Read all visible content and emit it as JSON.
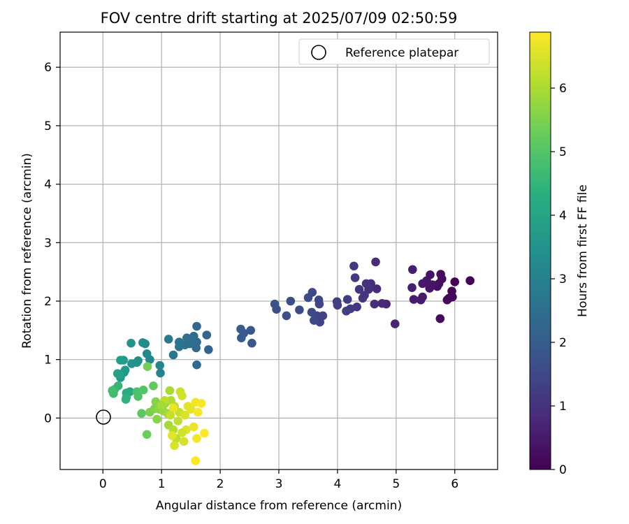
{
  "chart_data": {
    "type": "scatter",
    "title": "FOV centre drift starting at 2025/07/09 02:50:59",
    "xlabel": "Angular distance from reference (arcmin)",
    "ylabel": "Rotation from reference (arcmin)",
    "xlim": [
      -0.73,
      6.73
    ],
    "ylim": [
      -0.88,
      6.6
    ],
    "xticks": [
      0,
      1,
      2,
      3,
      4,
      5,
      6
    ],
    "yticks": [
      0,
      1,
      2,
      3,
      4,
      5,
      6
    ],
    "grid": true,
    "legend": {
      "position": "top-right",
      "entries": [
        "Reference platepar"
      ]
    },
    "reference_point": {
      "x": 0,
      "y": 0,
      "marker": "open-circle",
      "color": "#000000"
    },
    "colorbar": {
      "label": "Hours from first FF file",
      "range": [
        0,
        6.88
      ],
      "ticks": [
        0,
        1,
        2,
        3,
        4,
        5,
        6
      ],
      "colormap": "viridis"
    },
    "series": [
      {
        "points": [
          {
            "x": 6.26,
            "y": 2.35,
            "h": 0.0
          },
          {
            "x": 6.0,
            "y": 2.33,
            "h": 0.03
          },
          {
            "x": 5.95,
            "y": 2.17,
            "h": 0.06
          },
          {
            "x": 5.9,
            "y": 2.05,
            "h": 0.09
          },
          {
            "x": 5.96,
            "y": 2.07,
            "h": 0.12
          },
          {
            "x": 5.87,
            "y": 2.02,
            "h": 0.15
          },
          {
            "x": 5.75,
            "y": 1.7,
            "h": 0.18
          },
          {
            "x": 5.76,
            "y": 2.46,
            "h": 0.21
          },
          {
            "x": 5.78,
            "y": 2.38,
            "h": 0.24
          },
          {
            "x": 5.73,
            "y": 2.3,
            "h": 0.27
          },
          {
            "x": 5.7,
            "y": 2.25,
            "h": 0.3
          },
          {
            "x": 5.58,
            "y": 2.45,
            "h": 0.33
          },
          {
            "x": 5.62,
            "y": 2.28,
            "h": 0.36
          },
          {
            "x": 5.57,
            "y": 2.22,
            "h": 0.39
          },
          {
            "x": 5.52,
            "y": 2.35,
            "h": 0.42
          },
          {
            "x": 5.45,
            "y": 2.3,
            "h": 0.45
          },
          {
            "x": 5.42,
            "y": 2.02,
            "h": 0.48
          },
          {
            "x": 5.45,
            "y": 2.07,
            "h": 0.51
          },
          {
            "x": 5.3,
            "y": 2.03,
            "h": 0.54
          },
          {
            "x": 5.28,
            "y": 2.54,
            "h": 0.57
          },
          {
            "x": 5.27,
            "y": 2.23,
            "h": 0.6
          },
          {
            "x": 4.98,
            "y": 1.61,
            "h": 0.7
          },
          {
            "x": 4.83,
            "y": 1.95,
            "h": 0.75
          },
          {
            "x": 4.76,
            "y": 1.96,
            "h": 0.8
          },
          {
            "x": 4.65,
            "y": 2.67,
            "h": 0.85
          },
          {
            "x": 4.67,
            "y": 2.21,
            "h": 0.88
          },
          {
            "x": 4.63,
            "y": 1.95,
            "h": 0.9
          },
          {
            "x": 4.57,
            "y": 2.3,
            "h": 0.95
          },
          {
            "x": 4.53,
            "y": 2.2,
            "h": 1.0
          },
          {
            "x": 4.49,
            "y": 2.3,
            "h": 1.02
          },
          {
            "x": 4.46,
            "y": 2.1,
            "h": 1.05
          },
          {
            "x": 4.43,
            "y": 2.05,
            "h": 1.08
          },
          {
            "x": 4.37,
            "y": 2.2,
            "h": 1.1
          },
          {
            "x": 4.33,
            "y": 1.9,
            "h": 1.12
          },
          {
            "x": 4.28,
            "y": 2.6,
            "h": 1.15
          },
          {
            "x": 4.3,
            "y": 2.4,
            "h": 1.18
          },
          {
            "x": 4.22,
            "y": 1.87,
            "h": 1.2
          },
          {
            "x": 4.17,
            "y": 2.03,
            "h": 1.22
          },
          {
            "x": 4.15,
            "y": 1.83,
            "h": 1.25
          },
          {
            "x": 3.99,
            "y": 1.99,
            "h": 1.28
          },
          {
            "x": 4.0,
            "y": 1.93,
            "h": 1.3
          },
          {
            "x": 3.75,
            "y": 1.75,
            "h": 1.35
          },
          {
            "x": 3.7,
            "y": 1.64,
            "h": 1.38
          },
          {
            "x": 3.65,
            "y": 1.75,
            "h": 1.4
          },
          {
            "x": 3.69,
            "y": 1.95,
            "h": 1.42
          },
          {
            "x": 3.68,
            "y": 2.02,
            "h": 1.45
          },
          {
            "x": 3.6,
            "y": 1.67,
            "h": 1.48
          },
          {
            "x": 3.56,
            "y": 1.81,
            "h": 1.5
          },
          {
            "x": 3.57,
            "y": 2.15,
            "h": 1.52
          },
          {
            "x": 3.5,
            "y": 2.06,
            "h": 1.55
          },
          {
            "x": 3.35,
            "y": 1.85,
            "h": 1.58
          },
          {
            "x": 3.2,
            "y": 2.0,
            "h": 1.62
          },
          {
            "x": 3.13,
            "y": 1.75,
            "h": 1.65
          },
          {
            "x": 2.96,
            "y": 1.86,
            "h": 1.68
          },
          {
            "x": 2.93,
            "y": 1.95,
            "h": 1.72
          },
          {
            "x": 2.54,
            "y": 1.28,
            "h": 1.85
          },
          {
            "x": 2.52,
            "y": 1.5,
            "h": 1.88
          },
          {
            "x": 2.4,
            "y": 1.45,
            "h": 1.92
          },
          {
            "x": 2.35,
            "y": 1.52,
            "h": 1.95
          },
          {
            "x": 2.36,
            "y": 1.37,
            "h": 1.98
          },
          {
            "x": 1.8,
            "y": 1.17,
            "h": 2.2
          },
          {
            "x": 1.77,
            "y": 1.42,
            "h": 2.25
          },
          {
            "x": 1.6,
            "y": 1.57,
            "h": 2.3
          },
          {
            "x": 1.6,
            "y": 0.91,
            "h": 2.33
          },
          {
            "x": 1.59,
            "y": 1.2,
            "h": 2.36
          },
          {
            "x": 1.6,
            "y": 1.3,
            "h": 2.4
          },
          {
            "x": 1.55,
            "y": 1.4,
            "h": 2.43
          },
          {
            "x": 1.5,
            "y": 1.3,
            "h": 2.46
          },
          {
            "x": 1.48,
            "y": 1.27,
            "h": 2.5
          },
          {
            "x": 1.43,
            "y": 1.37,
            "h": 2.53
          },
          {
            "x": 1.4,
            "y": 1.25,
            "h": 2.56
          },
          {
            "x": 1.3,
            "y": 1.3,
            "h": 2.6
          },
          {
            "x": 1.3,
            "y": 1.22,
            "h": 2.63
          },
          {
            "x": 1.2,
            "y": 1.08,
            "h": 2.7
          },
          {
            "x": 1.12,
            "y": 1.35,
            "h": 2.75
          },
          {
            "x": 0.98,
            "y": 0.77,
            "h": 3.1
          },
          {
            "x": 0.97,
            "y": 0.9,
            "h": 3.15
          },
          {
            "x": 0.8,
            "y": 1.0,
            "h": 3.2
          },
          {
            "x": 0.75,
            "y": 1.1,
            "h": 3.25
          },
          {
            "x": 0.72,
            "y": 1.27,
            "h": 3.3
          },
          {
            "x": 0.68,
            "y": 1.29,
            "h": 3.35
          },
          {
            "x": 0.6,
            "y": 0.98,
            "h": 3.4
          },
          {
            "x": 0.58,
            "y": 0.95,
            "h": 3.45
          },
          {
            "x": 0.49,
            "y": 0.93,
            "h": 3.5
          },
          {
            "x": 0.48,
            "y": 1.28,
            "h": 3.55
          },
          {
            "x": 0.38,
            "y": 0.82,
            "h": 3.62
          },
          {
            "x": 0.36,
            "y": 0.78,
            "h": 3.68
          },
          {
            "x": 0.35,
            "y": 0.99,
            "h": 3.72
          },
          {
            "x": 0.3,
            "y": 0.69,
            "h": 3.78
          },
          {
            "x": 0.3,
            "y": 0.99,
            "h": 3.85
          },
          {
            "x": 0.28,
            "y": 0.75,
            "h": 3.9
          },
          {
            "x": 0.25,
            "y": 0.76,
            "h": 3.95
          },
          {
            "x": 0.46,
            "y": 0.45,
            "h": 4.1
          },
          {
            "x": 0.4,
            "y": 0.43,
            "h": 4.2
          },
          {
            "x": 0.4,
            "y": 0.35,
            "h": 4.3
          },
          {
            "x": 0.39,
            "y": 0.32,
            "h": 4.4
          },
          {
            "x": 0.26,
            "y": 0.55,
            "h": 4.5
          },
          {
            "x": 0.2,
            "y": 0.49,
            "h": 4.6
          },
          {
            "x": 0.18,
            "y": 0.42,
            "h": 4.7
          },
          {
            "x": 0.16,
            "y": 0.47,
            "h": 4.8
          },
          {
            "x": 0.58,
            "y": 0.45,
            "h": 4.9
          },
          {
            "x": 0.6,
            "y": 0.37,
            "h": 4.95
          },
          {
            "x": 0.69,
            "y": 0.48,
            "h": 5.0
          },
          {
            "x": 0.66,
            "y": 0.08,
            "h": 5.1
          },
          {
            "x": 0.86,
            "y": 0.55,
            "h": 5.2
          },
          {
            "x": 0.75,
            "y": -0.28,
            "h": 5.3
          },
          {
            "x": 0.76,
            "y": 0.88,
            "h": 5.4
          },
          {
            "x": 0.8,
            "y": 0.1,
            "h": 5.5
          },
          {
            "x": 0.88,
            "y": 0.16,
            "h": 5.55
          },
          {
            "x": 0.9,
            "y": 0.28,
            "h": 5.6
          },
          {
            "x": 0.92,
            "y": -0.02,
            "h": 5.65
          },
          {
            "x": 0.96,
            "y": 0.15,
            "h": 5.7
          },
          {
            "x": 1.0,
            "y": 0.2,
            "h": 5.75
          },
          {
            "x": 1.03,
            "y": 0.12,
            "h": 5.8
          },
          {
            "x": 1.06,
            "y": 0.25,
            "h": 5.85
          },
          {
            "x": 1.1,
            "y": 0.08,
            "h": 5.9
          },
          {
            "x": 1.12,
            "y": -0.12,
            "h": 5.95
          },
          {
            "x": 1.14,
            "y": 0.47,
            "h": 6.0
          },
          {
            "x": 1.16,
            "y": 0.3,
            "h": 6.05
          },
          {
            "x": 1.2,
            "y": -0.2,
            "h": 6.1
          },
          {
            "x": 1.22,
            "y": 0.2,
            "h": 6.15
          },
          {
            "x": 1.25,
            "y": -0.35,
            "h": 6.2
          },
          {
            "x": 1.28,
            "y": -0.05,
            "h": 6.25
          },
          {
            "x": 1.3,
            "y": 0.1,
            "h": 6.3
          },
          {
            "x": 1.32,
            "y": 0.45,
            "h": 6.35
          },
          {
            "x": 1.35,
            "y": 0.38,
            "h": 6.4
          },
          {
            "x": 1.38,
            "y": -0.4,
            "h": 6.45
          },
          {
            "x": 1.4,
            "y": 0.05,
            "h": 6.5
          },
          {
            "x": 1.42,
            "y": -0.2,
            "h": 6.55
          },
          {
            "x": 1.45,
            "y": 0.2,
            "h": 6.6
          },
          {
            "x": 1.5,
            "y": 0.15,
            "h": 6.65
          },
          {
            "x": 1.55,
            "y": -0.15,
            "h": 6.7
          },
          {
            "x": 1.58,
            "y": 0.27,
            "h": 6.75
          },
          {
            "x": 1.6,
            "y": -0.35,
            "h": 6.78
          },
          {
            "x": 1.62,
            "y": 0.1,
            "h": 6.8
          },
          {
            "x": 1.68,
            "y": 0.25,
            "h": 6.83
          },
          {
            "x": 1.73,
            "y": -0.26,
            "h": 6.85
          },
          {
            "x": 1.58,
            "y": -0.73,
            "h": 6.88
          },
          {
            "x": 1.2,
            "y": 0.17,
            "h": 6.7
          },
          {
            "x": 1.18,
            "y": -0.3,
            "h": 6.6
          },
          {
            "x": 1.22,
            "y": -0.47,
            "h": 6.5
          },
          {
            "x": 1.35,
            "y": -0.25,
            "h": 6.4
          },
          {
            "x": 1.15,
            "y": 0.05,
            "h": 6.3
          },
          {
            "x": 1.05,
            "y": 0.3,
            "h": 6.2
          },
          {
            "x": 1.0,
            "y": 0.22,
            "h": 5.95
          }
        ]
      }
    ]
  }
}
